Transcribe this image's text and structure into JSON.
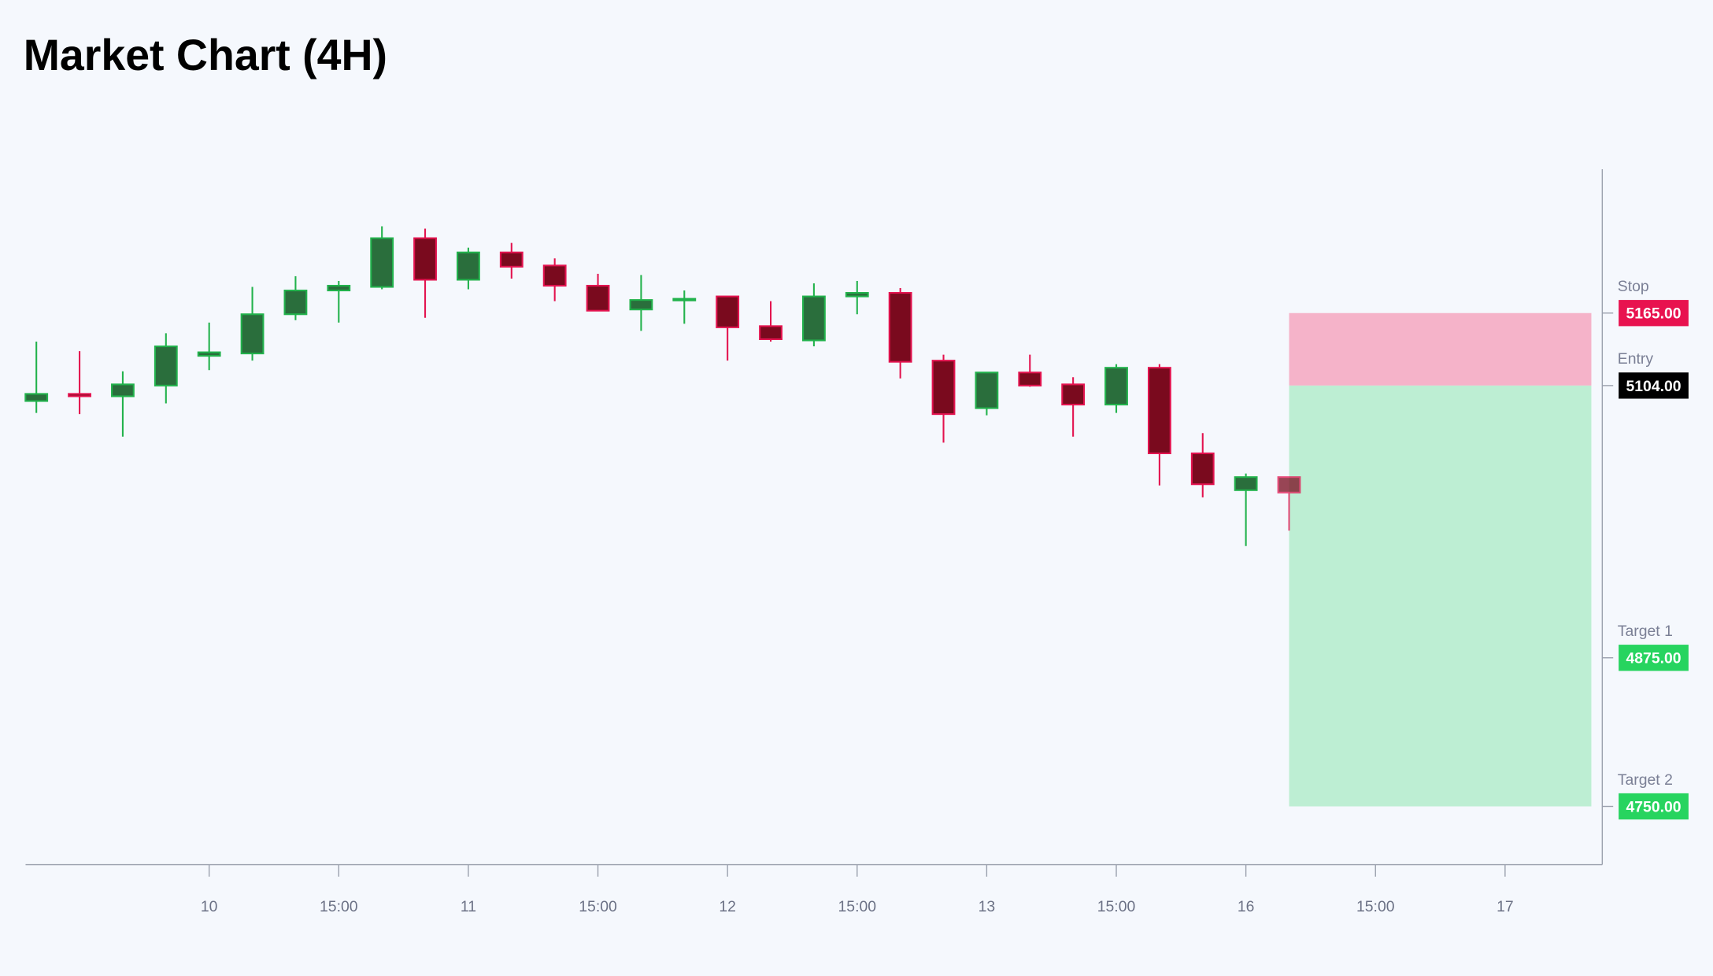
{
  "chart_data": {
    "type": "candlestick",
    "title": "Market Chart (4H)",
    "x": [
      0,
      1,
      2,
      3,
      4,
      5,
      6,
      7,
      8,
      9,
      10,
      11,
      12,
      13,
      14,
      15,
      16,
      17,
      18,
      19,
      20,
      21,
      22,
      23,
      24,
      25,
      26,
      27,
      28,
      29
    ],
    "open": [
      5091,
      5097,
      5095,
      5104,
      5129,
      5131,
      5164,
      5184,
      5187,
      5228,
      5193,
      5216,
      5205,
      5188,
      5168,
      5176,
      5179,
      5154,
      5142,
      5179,
      5182,
      5125,
      5085,
      5115,
      5105,
      5088,
      5119,
      5047,
      5016,
      5027
    ],
    "high": [
      5141,
      5133,
      5116,
      5148,
      5157,
      5187,
      5196,
      5192,
      5238,
      5236,
      5220,
      5224,
      5211,
      5198,
      5197,
      5184,
      5179,
      5175,
      5190,
      5192,
      5186,
      5130,
      5115,
      5130,
      5111,
      5122,
      5122,
      5064,
      5030,
      5027
    ],
    "low": [
      5081,
      5080,
      5061,
      5089,
      5117,
      5125,
      5159,
      5157,
      5185,
      5161,
      5185,
      5194,
      5175,
      5167,
      5150,
      5156,
      5125,
      5141,
      5137,
      5164,
      5110,
      5056,
      5079,
      5103,
      5061,
      5081,
      5020,
      5010,
      4969,
      4982
    ],
    "close": [
      5097,
      5095,
      5105,
      5137,
      5132,
      5164,
      5184,
      5188,
      5228,
      5193,
      5216,
      5204,
      5188,
      5167,
      5176,
      5177,
      5153,
      5143,
      5179,
      5182,
      5124,
      5080,
      5115,
      5104,
      5088,
      5119,
      5047,
      5021,
      5027,
      5014
    ],
    "up_color": "#2a6e3c",
    "up_border": "#22b24c",
    "down_color": "#7a0a1e",
    "down_border": "#e3134f",
    "xlim": [
      -0.25,
      36.25
    ],
    "xticks": [
      {
        "value": 4,
        "label": "10"
      },
      {
        "value": 7,
        "label": "15:00"
      },
      {
        "value": 10,
        "label": "11"
      },
      {
        "value": 13,
        "label": "15:00"
      },
      {
        "value": 16,
        "label": "12"
      },
      {
        "value": 19,
        "label": "15:00"
      },
      {
        "value": 22,
        "label": "13"
      },
      {
        "value": 25,
        "label": "15:00"
      },
      {
        "value": 28,
        "label": "16"
      },
      {
        "value": 31,
        "label": "15:00"
      },
      {
        "value": 34,
        "label": "17"
      }
    ],
    "ylim": [
      4701,
      5286
    ],
    "levels": {
      "names": [
        "Stop",
        "Entry",
        "Target 1",
        "Target 2"
      ],
      "values": [
        5165,
        5104,
        4875,
        4750
      ],
      "value_labels": [
        "5165.00",
        "5104.00",
        "4875.00",
        "4750.00"
      ],
      "colors": [
        "#e8124f",
        "#000000",
        "#27d45f",
        "#27d45f"
      ]
    },
    "risk_color": "#f5b3c9",
    "reward_color": "#bdeed3"
  }
}
